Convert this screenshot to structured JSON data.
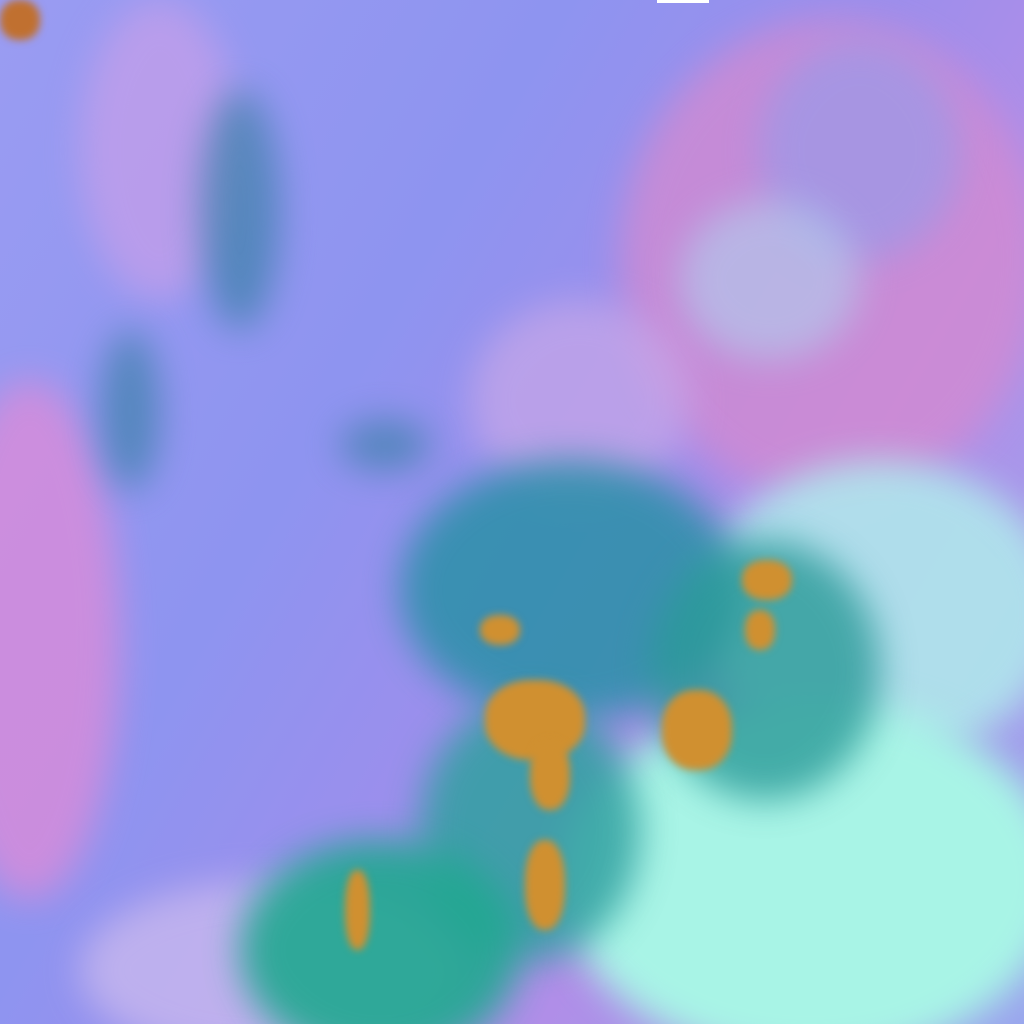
{
  "image": {
    "kind": "false-color satellite imagery",
    "colors": {
      "clear_sky": "#9094f0",
      "haze_pink": "#e080d0",
      "low_cloud": "#a0f0e8",
      "cloud_teal": "#1a8a8a",
      "cold_tops": "#d09030",
      "land_pink": "#d080c8"
    }
  }
}
